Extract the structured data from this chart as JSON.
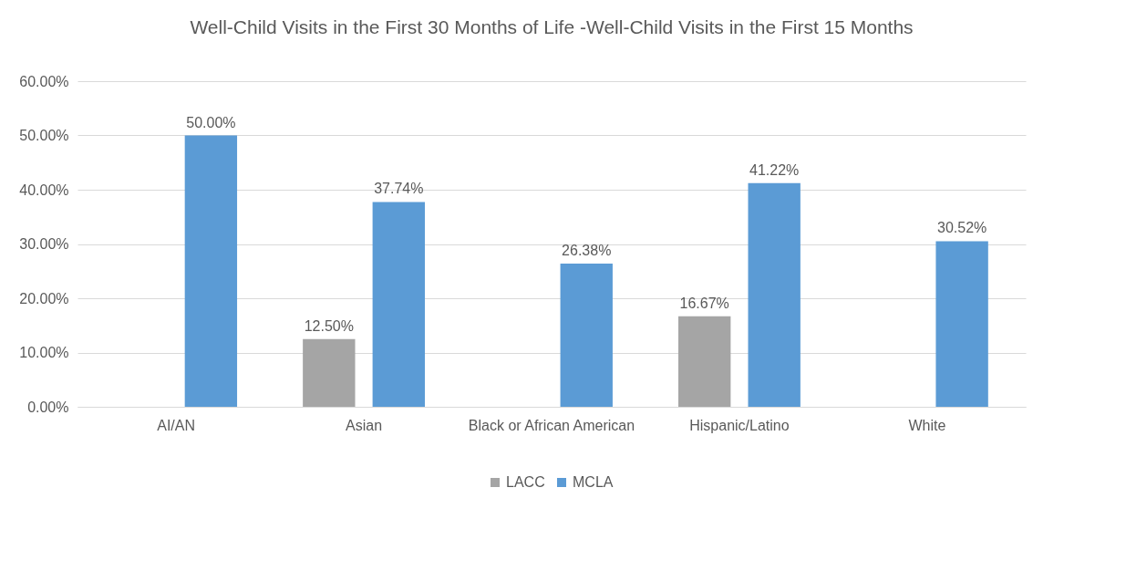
{
  "chart_data": {
    "type": "bar",
    "title": "Well-Child Visits in the First 30 Months of Life -Well-Child Visits in the First 15 Months",
    "categories": [
      "AI/AN",
      "Asian",
      "Black or African American",
      "Hispanic/Latino",
      "White"
    ],
    "series": [
      {
        "name": "LACC",
        "color": "#a5a5a5",
        "values": [
          null,
          12.5,
          null,
          16.67,
          null
        ],
        "value_labels": [
          null,
          "12.50%",
          null,
          "16.67%",
          null
        ]
      },
      {
        "name": "MCLA",
        "color": "#5b9bd5",
        "values": [
          50,
          37.74,
          26.38,
          41.22,
          30.52
        ],
        "value_labels": [
          "50.00%",
          "37.74%",
          "26.38%",
          "41.22%",
          "30.52%"
        ]
      }
    ],
    "ylim": [
      0,
      60
    ],
    "yticks": [
      {
        "value": 0,
        "label": "0.00%"
      },
      {
        "value": 10,
        "label": "10.00%"
      },
      {
        "value": 20,
        "label": "20.00%"
      },
      {
        "value": 30,
        "label": "30.00%"
      },
      {
        "value": 40,
        "label": "40.00%"
      },
      {
        "value": 50,
        "label": "50.00%"
      },
      {
        "value": 60,
        "label": "60.00%"
      }
    ],
    "grid": "y",
    "legend": "bottom"
  }
}
